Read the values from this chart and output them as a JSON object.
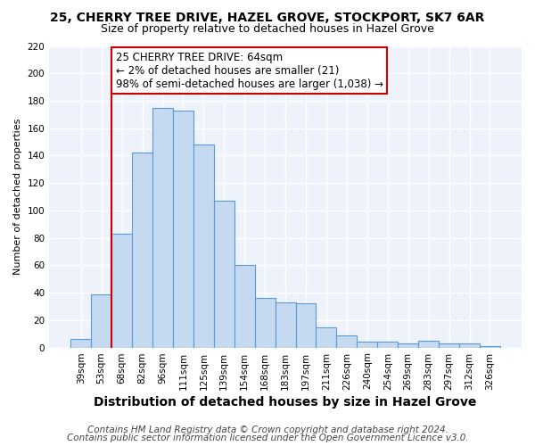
{
  "title": "25, CHERRY TREE DRIVE, HAZEL GROVE, STOCKPORT, SK7 6AR",
  "subtitle": "Size of property relative to detached houses in Hazel Grove",
  "xlabel": "Distribution of detached houses by size in Hazel Grove",
  "ylabel": "Number of detached properties",
  "categories": [
    "39sqm",
    "53sqm",
    "68sqm",
    "82sqm",
    "96sqm",
    "111sqm",
    "125sqm",
    "139sqm",
    "154sqm",
    "168sqm",
    "183sqm",
    "197sqm",
    "211sqm",
    "226sqm",
    "240sqm",
    "254sqm",
    "269sqm",
    "283sqm",
    "297sqm",
    "312sqm",
    "326sqm"
  ],
  "values": [
    6,
    39,
    83,
    142,
    175,
    173,
    148,
    107,
    60,
    36,
    33,
    32,
    15,
    9,
    4,
    4,
    3,
    5,
    3,
    3,
    1
  ],
  "bar_color": "#c5d9f1",
  "bar_edge_color": "#5b9bd5",
  "property_line_color": "#cc0000",
  "annotation_text": "25 CHERRY TREE DRIVE: 64sqm\n← 2% of detached houses are smaller (21)\n98% of semi-detached houses are larger (1,038) →",
  "annotation_box_color": "#ffffff",
  "annotation_box_edge": "#cc0000",
  "footer1": "Contains HM Land Registry data © Crown copyright and database right 2024.",
  "footer2": "Contains public sector information licensed under the Open Government Licence v3.0.",
  "ylim": [
    0,
    220
  ],
  "yticks": [
    0,
    20,
    40,
    60,
    80,
    100,
    120,
    140,
    160,
    180,
    200,
    220
  ],
  "background_color": "#eef3fb",
  "grid_color": "#ffffff",
  "fig_background": "#ffffff",
  "title_fontsize": 10,
  "subtitle_fontsize": 9,
  "xlabel_fontsize": 10,
  "ylabel_fontsize": 8,
  "tick_fontsize": 7.5,
  "annotation_fontsize": 8.5,
  "footer_fontsize": 7.5
}
